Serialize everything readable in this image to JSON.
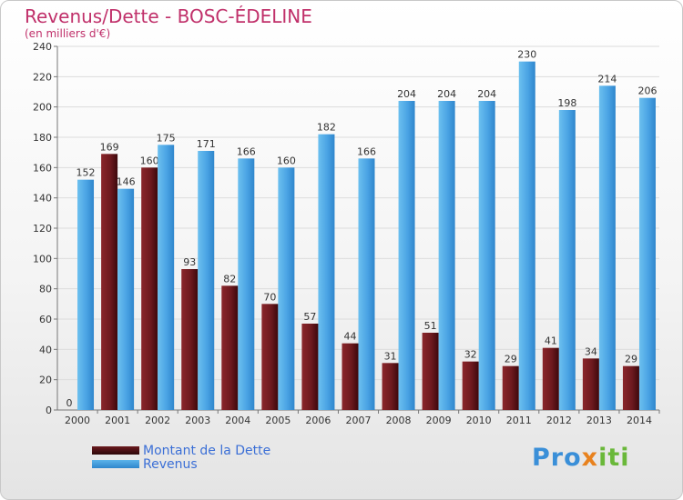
{
  "chart_data": {
    "type": "bar",
    "title": "Revenus/Dette - BOSC-ÉDELINE",
    "subtitle": "(en milliers d'€)",
    "categories": [
      "2000",
      "2001",
      "2002",
      "2003",
      "2004",
      "2005",
      "2006",
      "2007",
      "2008",
      "2009",
      "2010",
      "2011",
      "2012",
      "2013",
      "2014"
    ],
    "series": [
      {
        "name": "Montant de la Dette",
        "color": "#7a1e22",
        "values": [
          0,
          169,
          160,
          93,
          82,
          70,
          57,
          44,
          31,
          51,
          32,
          29,
          41,
          34,
          29
        ]
      },
      {
        "name": "Revenus",
        "color": "#4aa3e4",
        "values": [
          152,
          146,
          175,
          171,
          166,
          160,
          182,
          166,
          204,
          204,
          204,
          230,
          198,
          214,
          206
        ]
      }
    ],
    "ylim": [
      0,
      240
    ],
    "yticks": [
      0,
      20,
      40,
      60,
      80,
      100,
      120,
      140,
      160,
      180,
      200,
      220,
      240
    ],
    "grid": true,
    "legend_position": "bottom-left"
  },
  "logo": {
    "text_pro": "Pro",
    "text_x": "x",
    "text_iti": "iti"
  }
}
